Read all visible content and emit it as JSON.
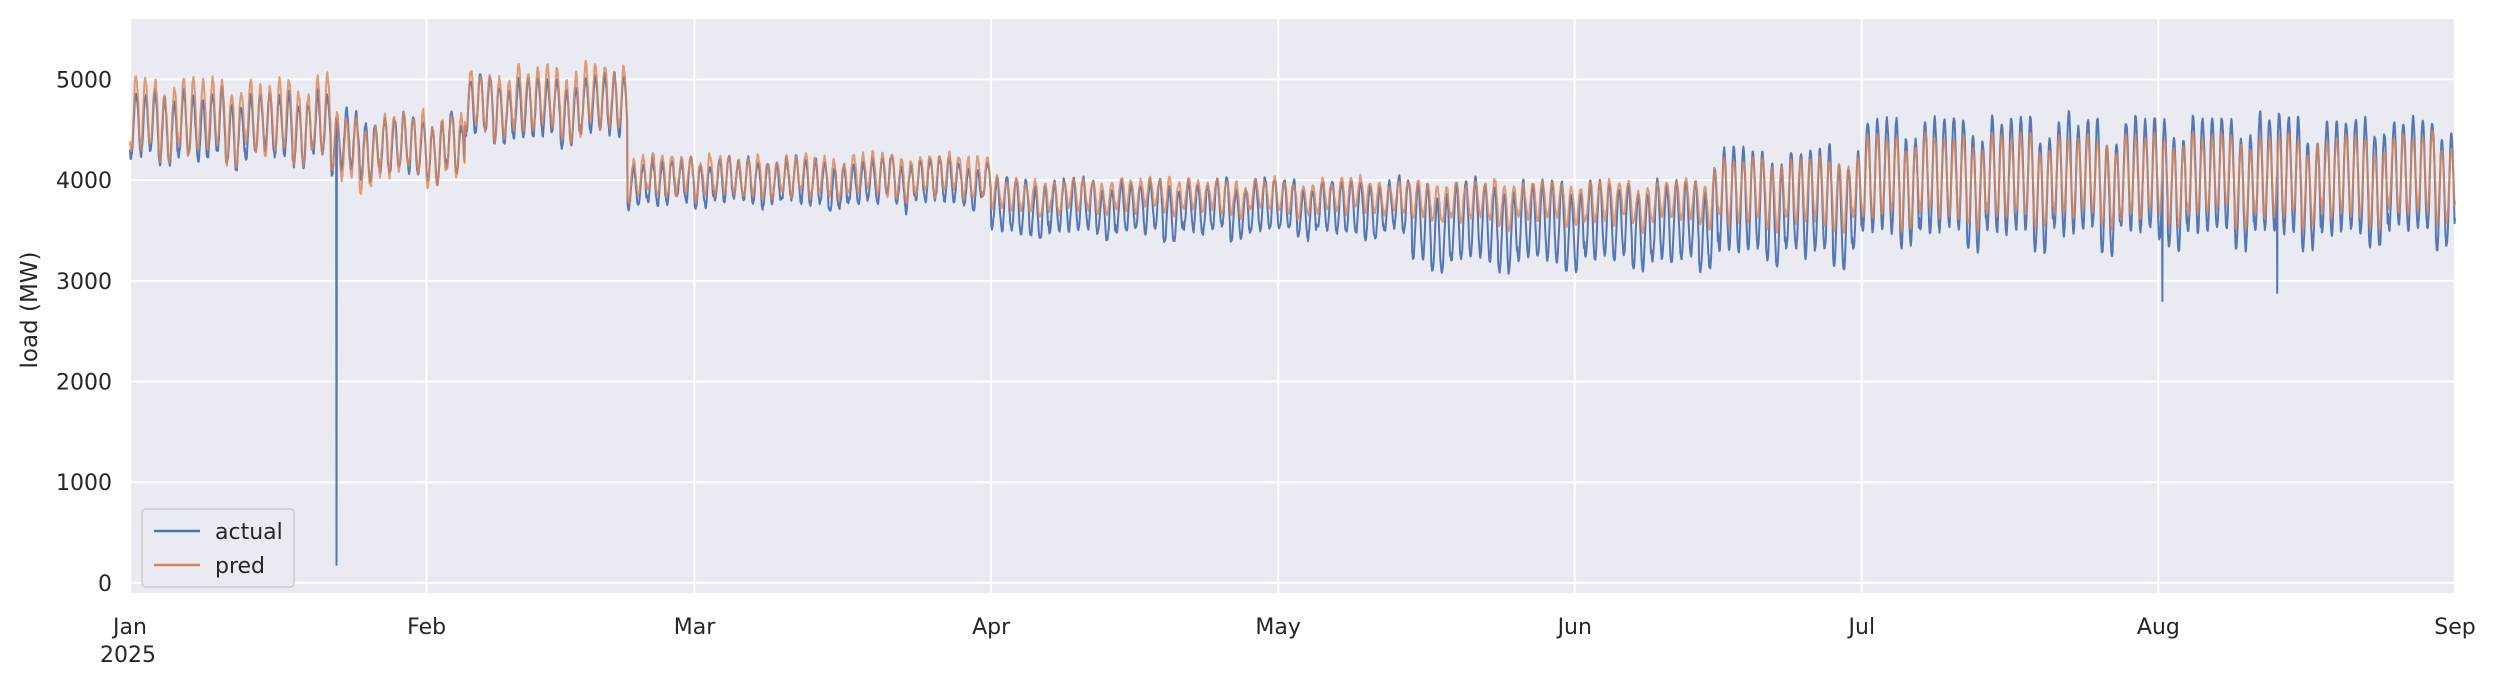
{
  "chart_data": {
    "type": "line",
    "title": "",
    "xlabel": "",
    "ylabel": "load (MW)",
    "x_axis": {
      "type": "date",
      "start": "2025-01-01",
      "end": "2025-09-01",
      "year_label": "2025",
      "ticks": [
        {
          "date": "2025-01-01",
          "label": "Jan"
        },
        {
          "date": "2025-02-01",
          "label": "Feb"
        },
        {
          "date": "2025-03-01",
          "label": "Mar"
        },
        {
          "date": "2025-04-01",
          "label": "Apr"
        },
        {
          "date": "2025-05-01",
          "label": "May"
        },
        {
          "date": "2025-06-01",
          "label": "Jun"
        },
        {
          "date": "2025-07-01",
          "label": "Jul"
        },
        {
          "date": "2025-08-01",
          "label": "Aug"
        },
        {
          "date": "2025-09-01",
          "label": "Sep"
        }
      ]
    },
    "y_axis": {
      "ylim": [
        -100,
        5600
      ],
      "ticks": [
        0,
        1000,
        2000,
        3000,
        4000,
        5000
      ]
    },
    "grid": true,
    "legend_placement": "lower-left",
    "resolution": "hourly",
    "series": [
      {
        "name": "actual",
        "color": "#4c72b0",
        "segments": [
          {
            "start": "2025-01-01",
            "end": "2025-01-22",
            "mean": 4550,
            "amplitude": 300,
            "noise": 120
          },
          {
            "start": "2025-01-22",
            "end": "2025-02-05",
            "mean": 4350,
            "amplitude": 280,
            "noise": 120
          },
          {
            "start": "2025-02-05",
            "end": "2025-02-22",
            "mean": 4750,
            "amplitude": 280,
            "noise": 100
          },
          {
            "start": "2025-02-22",
            "end": "2025-04-01",
            "mean": 4000,
            "amplitude": 200,
            "noise": 100
          },
          {
            "start": "2025-04-01",
            "end": "2025-05-15",
            "mean": 3750,
            "amplitude": 250,
            "noise": 90
          },
          {
            "start": "2025-05-15",
            "end": "2025-06-15",
            "mean": 3600,
            "amplitude": 380,
            "noise": 90
          },
          {
            "start": "2025-06-15",
            "end": "2025-07-01",
            "mean": 3800,
            "amplitude": 500,
            "noise": 100
          },
          {
            "start": "2025-07-01",
            "end": "2025-09-01",
            "mean": 4050,
            "amplitude": 550,
            "noise": 110
          }
        ],
        "anomalies": [
          {
            "date": "2025-01-22T14:00",
            "value": 180
          },
          {
            "date": "2025-08-01T10:00",
            "value": 2800
          },
          {
            "date": "2025-08-13T10:00",
            "value": 2880
          }
        ]
      },
      {
        "name": "pred",
        "color": "#dd8452",
        "segments": [
          {
            "start": "2025-01-01",
            "end": "2025-01-22",
            "mean": 4650,
            "amplitude": 350,
            "noise": 140
          },
          {
            "start": "2025-01-22",
            "end": "2025-02-05",
            "mean": 4350,
            "amplitude": 300,
            "noise": 130
          },
          {
            "start": "2025-02-05",
            "end": "2025-02-22",
            "mean": 4800,
            "amplitude": 300,
            "noise": 120
          },
          {
            "start": "2025-02-22",
            "end": "2025-04-01",
            "mean": 4050,
            "amplitude": 180,
            "noise": 110
          },
          {
            "start": "2025-04-01",
            "end": "2025-05-15",
            "mean": 3850,
            "amplitude": 150,
            "noise": 80
          },
          {
            "start": "2025-05-15",
            "end": "2025-06-15",
            "mean": 3800,
            "amplitude": 180,
            "noise": 80
          },
          {
            "start": "2025-06-15",
            "end": "2025-07-01",
            "mean": 3900,
            "amplitude": 300,
            "noise": 90
          },
          {
            "start": "2025-07-01",
            "end": "2025-09-01",
            "mean": 4050,
            "amplitude": 380,
            "noise": 100
          }
        ],
        "anomalies": []
      }
    ]
  }
}
